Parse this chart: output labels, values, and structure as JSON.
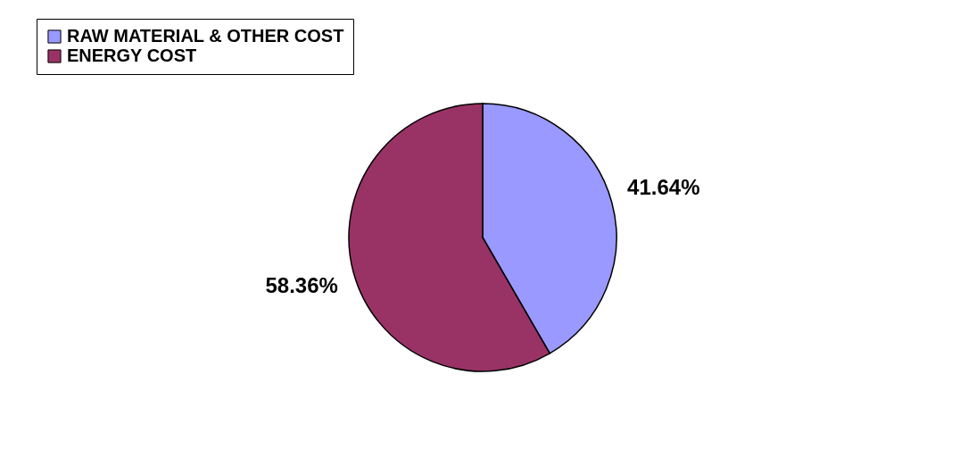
{
  "chart_data": {
    "type": "pie",
    "categories": [
      "RAW MATERIAL & OTHER COST",
      "ENERGY COST"
    ],
    "values": [
      41.64,
      58.36
    ],
    "colors": [
      "#9999ff",
      "#993366"
    ],
    "value_labels": [
      "41.64%",
      "58.36%"
    ],
    "legend": "top"
  }
}
